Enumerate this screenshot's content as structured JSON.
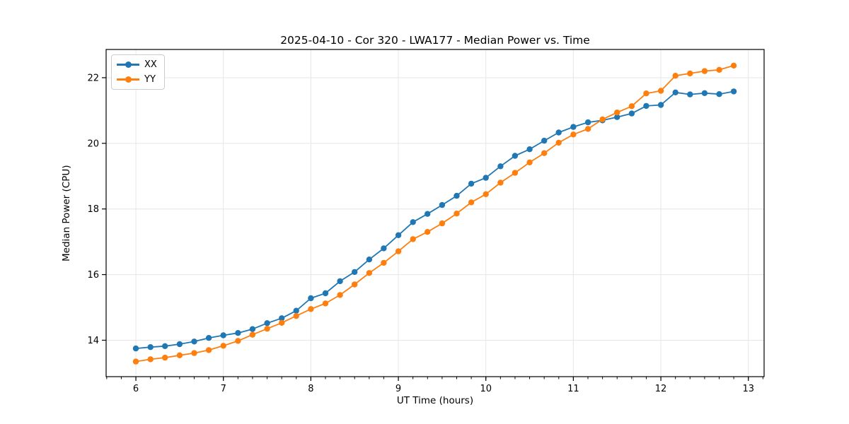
{
  "chart_data": {
    "type": "line",
    "title": "2025-04-10 - Cor 320 - LWA177 - Median Power vs. Time",
    "xlabel": "UT Time (hours)",
    "ylabel": "Median Power (CPU)",
    "xlim": [
      5.66,
      13.18
    ],
    "ylim": [
      12.89,
      22.86
    ],
    "x_major_ticks": [
      6,
      7,
      8,
      9,
      10,
      11,
      12,
      13
    ],
    "x_minor_tick_step": 0.166667,
    "y_major_ticks": [
      14,
      16,
      18,
      20,
      22
    ],
    "grid": true,
    "grid_color": "#e6e6e6",
    "legend_position": "upper-left",
    "x": [
      6.0,
      6.167,
      6.333,
      6.5,
      6.667,
      6.833,
      7.0,
      7.167,
      7.333,
      7.5,
      7.667,
      7.833,
      8.0,
      8.167,
      8.333,
      8.5,
      8.667,
      8.833,
      9.0,
      9.167,
      9.333,
      9.5,
      9.667,
      9.833,
      10.0,
      10.167,
      10.333,
      10.5,
      10.667,
      10.833,
      11.0,
      11.167,
      11.333,
      11.5,
      11.667,
      11.833,
      12.0,
      12.167,
      12.333,
      12.5,
      12.667,
      12.833
    ],
    "series": [
      {
        "name": "XX",
        "color": "#1f77b4",
        "values": [
          13.75,
          13.79,
          13.82,
          13.88,
          13.96,
          14.07,
          14.15,
          14.22,
          14.34,
          14.52,
          14.67,
          14.9,
          15.28,
          15.43,
          15.8,
          16.08,
          16.46,
          16.8,
          17.2,
          17.6,
          17.85,
          18.12,
          18.4,
          18.77,
          18.95,
          19.3,
          19.62,
          19.82,
          20.08,
          20.33,
          20.5,
          20.64,
          20.7,
          20.8,
          20.91,
          21.14,
          21.17,
          21.55,
          21.49,
          21.53,
          21.5,
          21.58
        ]
      },
      {
        "name": "YY",
        "color": "#ff7f0e",
        "values": [
          13.35,
          13.42,
          13.47,
          13.54,
          13.61,
          13.7,
          13.83,
          13.98,
          14.17,
          14.35,
          14.53,
          14.74,
          14.95,
          15.12,
          15.38,
          15.7,
          16.05,
          16.36,
          16.71,
          17.08,
          17.3,
          17.56,
          17.86,
          18.2,
          18.45,
          18.8,
          19.1,
          19.42,
          19.7,
          20.02,
          20.27,
          20.44,
          20.73,
          20.94,
          21.13,
          21.52,
          21.6,
          22.06,
          22.13,
          22.2,
          22.24,
          22.37
        ]
      }
    ]
  }
}
